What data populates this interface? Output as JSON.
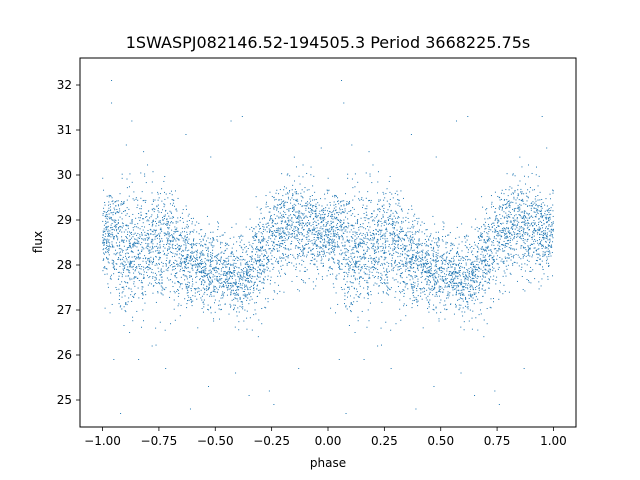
{
  "chart_data": {
    "type": "scatter",
    "title": "1SWASPJ082146.52-194505.3 Period 3668225.75s",
    "xlabel": "phase",
    "ylabel": "flux",
    "xlim": [
      -1.1,
      1.1
    ],
    "ylim": [
      24.4,
      32.6
    ],
    "xticks": [
      -1.0,
      -0.75,
      -0.5,
      -0.25,
      0.0,
      0.25,
      0.5,
      0.75,
      1.0
    ],
    "xtick_labels": [
      "−1.00",
      "−0.75",
      "−0.50",
      "−0.25",
      "0.00",
      "0.25",
      "0.50",
      "0.75",
      "1.00"
    ],
    "yticks": [
      25,
      26,
      27,
      28,
      29,
      30,
      31,
      32
    ],
    "ytick_labels": [
      "25",
      "26",
      "27",
      "28",
      "29",
      "30",
      "31",
      "32"
    ],
    "grid": false,
    "series": [
      {
        "color": "#1f77b4",
        "marker_size": 1,
        "phase_fold_repeat": true,
        "profile": {
          "phase": [
            0.0,
            0.05,
            0.1,
            0.15,
            0.2,
            0.25,
            0.3,
            0.35,
            0.4,
            0.45,
            0.5,
            0.55,
            0.6,
            0.65,
            0.7,
            0.75,
            0.8,
            0.85,
            0.9,
            0.95,
            1.0
          ],
          "flux": [
            28.7,
            28.6,
            28.2,
            28.3,
            28.5,
            28.3,
            28.4,
            28.2,
            28.0,
            27.9,
            27.9,
            27.8,
            27.6,
            27.9,
            28.2,
            28.5,
            28.8,
            28.9,
            28.8,
            28.7,
            28.7
          ],
          "spread": [
            0.5,
            0.6,
            0.9,
            0.8,
            0.7,
            0.7,
            0.8,
            0.6,
            0.5,
            0.5,
            0.5,
            0.4,
            0.4,
            0.5,
            0.6,
            0.6,
            0.6,
            0.6,
            0.6,
            0.5,
            0.5
          ]
        },
        "point_count": 3200,
        "outliers": [
          [
            -0.96,
            32.1
          ],
          [
            -0.96,
            31.6
          ],
          [
            -0.87,
            31.2
          ],
          [
            -0.43,
            31.2
          ],
          [
            -0.38,
            31.3
          ],
          [
            0.06,
            32.1
          ],
          [
            0.07,
            31.6
          ],
          [
            0.57,
            31.2
          ],
          [
            0.62,
            31.3
          ],
          [
            0.95,
            31.3
          ],
          [
            -0.63,
            30.9
          ],
          [
            -0.52,
            30.4
          ],
          [
            0.37,
            30.9
          ],
          [
            0.48,
            30.4
          ],
          [
            -0.03,
            30.6
          ],
          [
            0.97,
            30.6
          ],
          [
            -0.88,
            26.5
          ],
          [
            -0.84,
            25.9
          ],
          [
            -0.72,
            25.7
          ],
          [
            -0.53,
            25.3
          ],
          [
            -0.41,
            25.6
          ],
          [
            -0.26,
            25.2
          ],
          [
            -0.13,
            25.7
          ],
          [
            0.12,
            26.5
          ],
          [
            0.16,
            25.9
          ],
          [
            0.28,
            25.7
          ],
          [
            0.47,
            25.3
          ],
          [
            0.59,
            25.6
          ],
          [
            0.74,
            25.2
          ],
          [
            0.87,
            25.7
          ],
          [
            -0.92,
            24.7
          ],
          [
            -0.61,
            24.8
          ],
          [
            -0.24,
            24.9
          ],
          [
            0.08,
            24.7
          ],
          [
            0.39,
            24.8
          ],
          [
            0.76,
            24.9
          ],
          [
            -0.78,
            26.2
          ],
          [
            0.22,
            26.2
          ],
          [
            -0.35,
            25.1
          ],
          [
            0.65,
            25.1
          ],
          [
            -0.95,
            25.9
          ],
          [
            0.05,
            25.9
          ]
        ]
      }
    ]
  }
}
